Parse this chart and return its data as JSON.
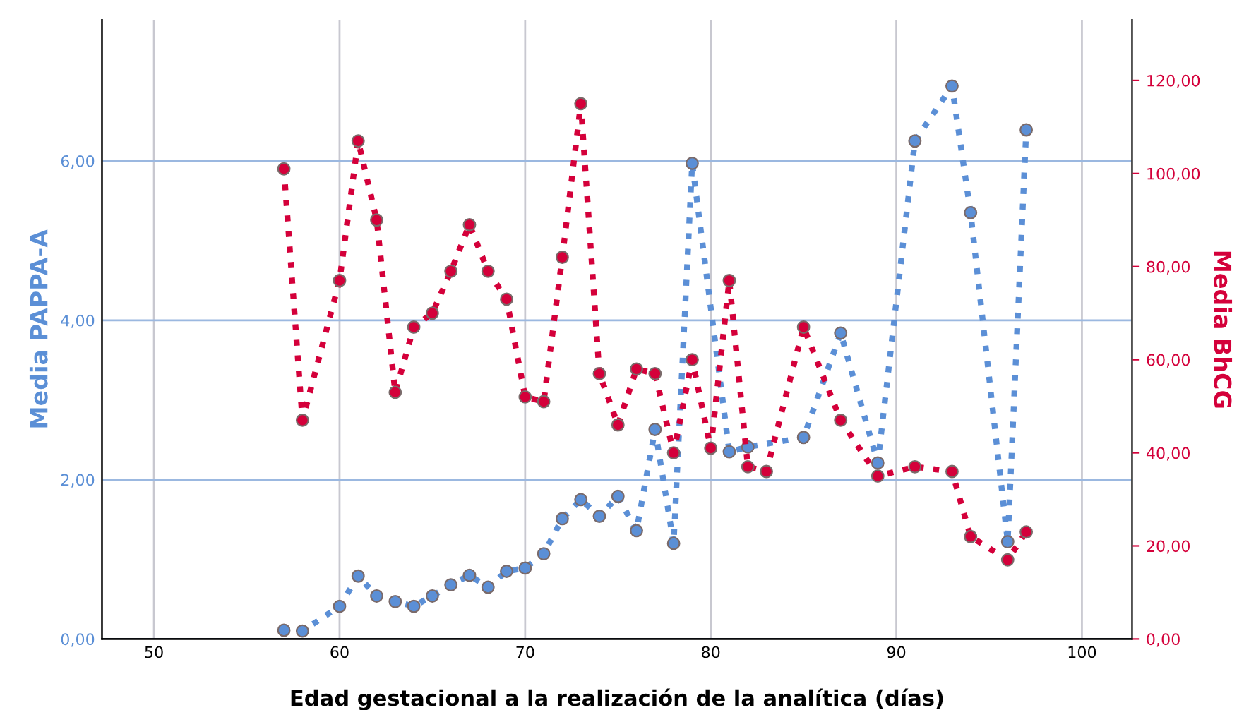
{
  "chart_data": {
    "type": "line",
    "xlabel": "Edad gestacional a la realización de la analítica (días)",
    "ylabel": "Media PAPPA-A",
    "y2label": "Media BhCG",
    "x": [
      57,
      58,
      60,
      61,
      62,
      63,
      64,
      65,
      66,
      67,
      68,
      69,
      70,
      71,
      72,
      73,
      74,
      75,
      76,
      77,
      78,
      79,
      80,
      81,
      82,
      83,
      85,
      87,
      89,
      91,
      93,
      94,
      96,
      97
    ],
    "series": [
      {
        "name": null,
        "color": "#5b8fd6",
        "values": [
          0.11,
          0.1,
          0.41,
          0.79,
          0.54,
          0.47,
          0.41,
          0.54,
          0.68,
          0.8,
          0.65,
          0.85,
          0.89,
          1.07,
          1.51,
          1.75,
          1.54,
          1.79,
          1.36,
          2.63,
          1.2,
          5.97,
          null,
          2.35,
          2.41,
          null,
          2.53,
          3.84,
          2.21,
          6.25,
          6.94,
          5.35,
          1.22,
          6.39
        ]
      },
      {
        "name": null,
        "color": "#d4003a",
        "axis": "y2",
        "values": [
          101,
          47,
          77,
          107,
          90,
          53,
          67,
          70,
          79,
          89,
          79,
          73,
          52,
          51,
          82,
          115,
          57,
          46,
          58,
          57,
          40,
          60,
          41,
          77,
          37,
          36,
          67,
          47,
          35,
          37,
          36,
          22,
          17,
          23
        ]
      }
    ],
    "xlim": [
      47.2,
      102.7
    ],
    "xticks": [
      50,
      60,
      70,
      80,
      90,
      100
    ],
    "ylim": [
      0,
      7.77
    ],
    "yticks": [
      {
        "value": 0,
        "label": "0,00"
      },
      {
        "value": 2,
        "label": "2,00"
      },
      {
        "value": 4,
        "label": "4,00"
      },
      {
        "value": 6,
        "label": "6,00"
      }
    ],
    "y2lim": [
      0,
      133
    ],
    "y2ticks": [
      {
        "value": 0,
        "label": "0,00"
      },
      {
        "value": 20,
        "label": "20,00"
      },
      {
        "value": 40,
        "label": "40,00"
      },
      {
        "value": 60,
        "label": "60,00"
      },
      {
        "value": 80,
        "label": "80,00"
      },
      {
        "value": 100,
        "label": "100,00"
      },
      {
        "value": 120,
        "label": "120,00"
      }
    ],
    "grid": true,
    "marker": "circle",
    "line_style": "dotted"
  }
}
